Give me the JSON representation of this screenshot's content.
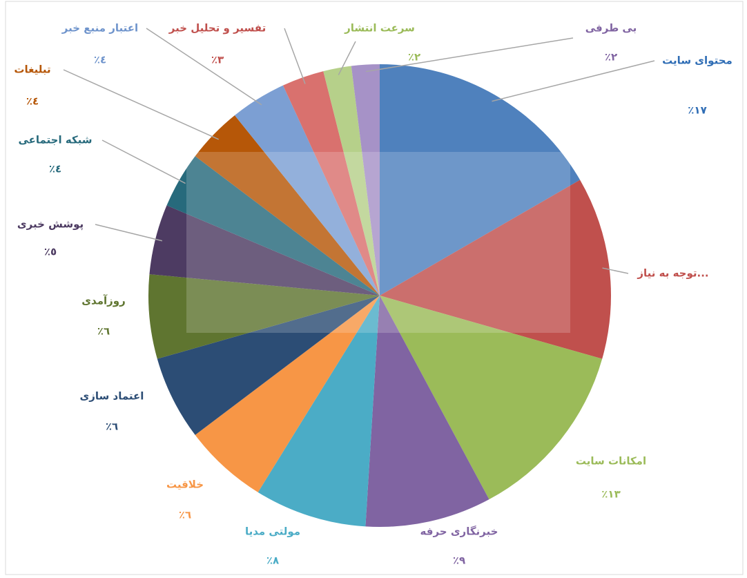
{
  "chart_data": {
    "type": "pie",
    "categories": [
      "محتوای سایت",
      "توجه به نیاز...",
      "امکانات سایت",
      "خبرنگاری حرفه",
      "مولتی مدیا",
      "خلاقیت",
      "اعتماد سازی",
      "روزآمدی",
      "پوشش خبری",
      "شبکه اجتماعی",
      "تبلیغات",
      "اعتبار منبع خبر",
      "تفسیر و تحلیل خبر",
      "سرعت انتشار",
      "بی طرفی"
    ],
    "values": [
      17,
      13,
      13,
      9,
      8,
      6,
      6,
      6,
      5,
      4,
      4,
      4,
      3,
      2,
      2
    ],
    "value_labels": [
      "٪١٧",
      null,
      "٪١٣",
      "٪٩",
      "٪٨",
      "٪٦",
      "٪٦",
      "٪٦",
      "٪٥",
      "٪٤",
      "٪٤",
      "٪٤",
      "٪٣",
      "٪٢",
      "٪٢"
    ],
    "colors": [
      "#4f81bd",
      "#c0504d",
      "#9bbb59",
      "#8064a2",
      "#4bacc6",
      "#f79646",
      "#2c4d75",
      "#5f7530",
      "#4d3b62",
      "#276a7c",
      "#b65708",
      "#7c9fd3",
      "#d9716e",
      "#b6d08a",
      "#a692c7"
    ]
  }
}
